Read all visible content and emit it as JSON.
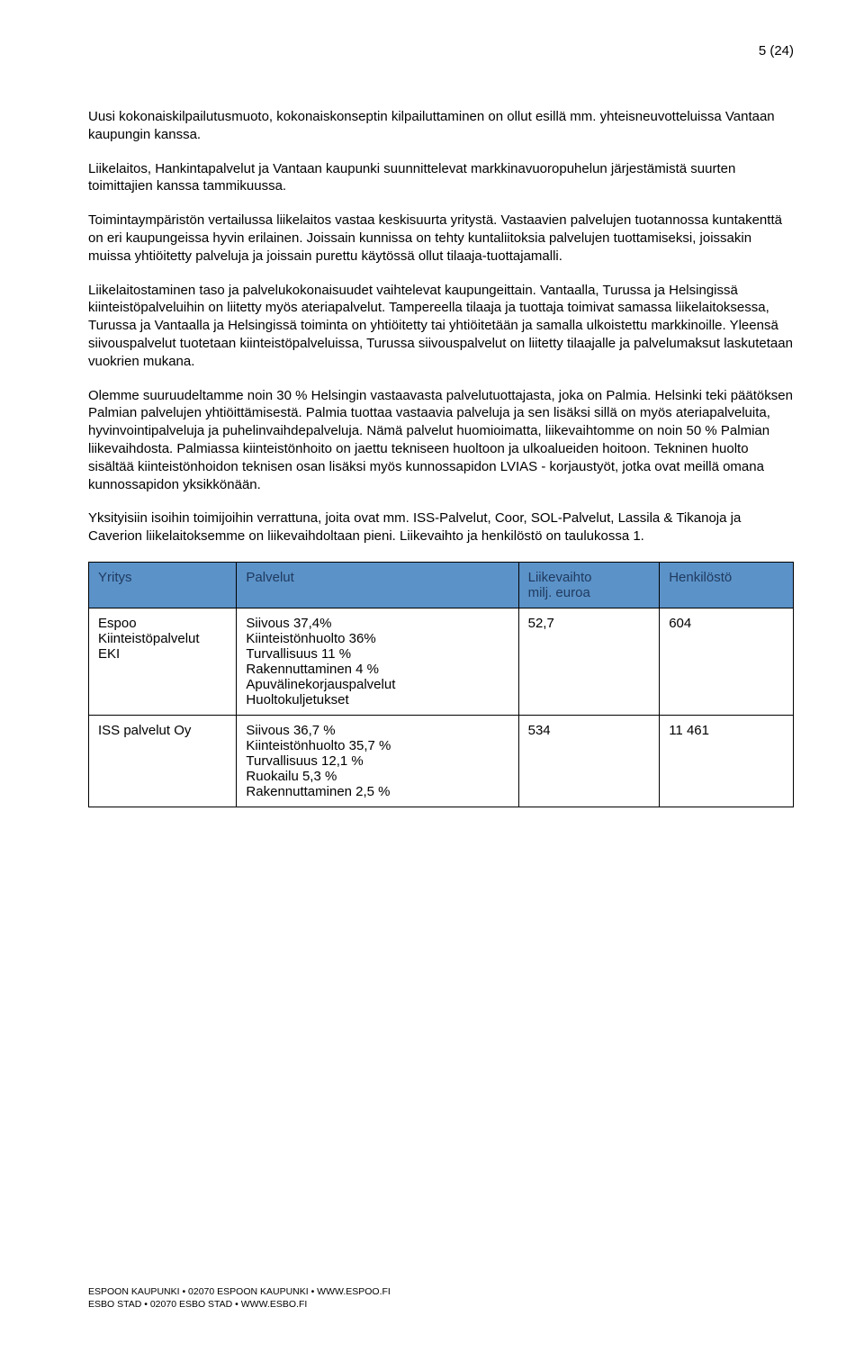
{
  "page_number": "5 (24)",
  "paragraphs": {
    "p1": "Uusi kokonaiskilpailutusmuoto, kokonaiskonseptin kilpailuttaminen on ollut esillä mm. yhteisneuvotteluissa Vantaan kaupungin kanssa.",
    "p2": "Liikelaitos, Hankintapalvelut ja Vantaan kaupunki suunnittelevat markkinavuoropuhelun järjestämistä suurten toimittajien kanssa tammikuussa.",
    "p3": "Toimintaympäristön vertailussa liikelaitos vastaa keskisuurta yritystä. Vastaavien palvelujen tuotannossa kuntakenttä on eri kaupungeissa hyvin erilainen. Joissain kunnissa on tehty kuntaliitoksia palvelujen tuottamiseksi, joissakin muissa yhtiöitetty palveluja ja joissain purettu käytössä ollut tilaaja-tuottajamalli.",
    "p4": "Liikelaitostaminen taso ja palvelukokonaisuudet vaihtelevat kaupungeittain. Vantaalla, Turussa ja Helsingissä kiinteistöpalveluihin on liitetty myös ateriapalvelut. Tampereella tilaaja ja tuottaja toimivat samassa liikelaitoksessa, Turussa ja Vantaalla ja Helsingissä toiminta on yhtiöitetty tai yhtiöitetään ja samalla ulkoistettu markkinoille. Yleensä siivouspalvelut tuotetaan kiinteistöpalveluissa, Turussa siivouspalvelut on liitetty tilaajalle ja palvelumaksut laskutetaan vuokrien mukana.",
    "p5": "Olemme suuruudeltamme noin 30 % Helsingin vastaavasta palvelutuottajasta, joka on Palmia. Helsinki teki päätöksen Palmian palvelujen yhtiöittämisestä. Palmia tuottaa vastaavia palveluja ja sen lisäksi sillä on myös ateriapalveluita, hyvinvointipalveluja ja puhelinvaihdepalveluja. Nämä palvelut huomioimatta, liikevaihtomme on noin 50 % Palmian liikevaihdosta. Palmiassa kiinteistönhoito on jaettu tekniseen huoltoon ja ulkoalueiden hoitoon. Tekninen huolto sisältää kiinteistönhoidon teknisen osan lisäksi myös kunnossapidon LVIAS - korjaustyöt, jotka ovat meillä omana kunnossapidon yksikkönään.",
    "p6": "Yksityisiin isoihin toimijoihin verrattuna, joita ovat mm. ISS-Palvelut, Coor, SOL-Palvelut, Lassila & Tikanoja ja Caverion liikelaitoksemme on liikevaihdoltaan pieni. Liikevaihto ja henkilöstö on taulukossa 1."
  },
  "table": {
    "header_bg": "#5b92c8",
    "header_text": "#1f3a5f",
    "columns": [
      {
        "label": "Yritys",
        "width": "21%"
      },
      {
        "label": "Palvelut",
        "width": "40%"
      },
      {
        "label": "Liikevaihto\nmilj. euroa",
        "width": "20%"
      },
      {
        "label": "Henkilöstö",
        "width": "19%"
      }
    ],
    "rows": [
      {
        "yritys": "Espoo\nKiinteistöpalvelut\nEKI",
        "palvelut": "Siivous 37,4%\nKiinteistönhuolto 36%\nTurvallisuus 11 %\nRakennuttaminen 4 %\nApuvälinekorjauspalvelut\nHuoltokuljetukset",
        "liikevaihto": "52,7",
        "henkilosto": "604"
      },
      {
        "yritys": "ISS palvelut Oy",
        "palvelut": "Siivous 36,7 %\nKiinteistönhuolto 35,7 %\nTurvallisuus 12,1 %\nRuokailu 5,3 %\nRakennuttaminen 2,5 %",
        "liikevaihto": "534",
        "henkilosto": "11 461"
      }
    ]
  },
  "footer": {
    "line1": "ESPOON KAUPUNKI • 02070 ESPOON KAUPUNKI • WWW.ESPOO.FI",
    "line2": "ESBO STAD • 02070 ESBO STAD • WWW.ESBO.FI"
  }
}
